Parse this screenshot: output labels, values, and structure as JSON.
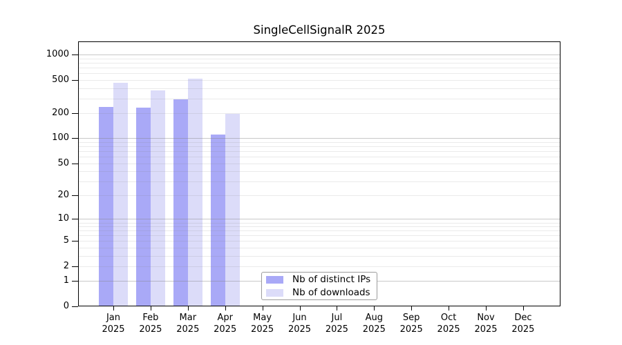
{
  "chart_data": {
    "type": "bar",
    "title": "SingleCellSignalR 2025",
    "categories": [
      "Jan",
      "Feb",
      "Mar",
      "Apr",
      "May",
      "Jun",
      "Jul",
      "Aug",
      "Sep",
      "Oct",
      "Nov",
      "Dec"
    ],
    "x_tick_year": "2025",
    "series": [
      {
        "name": "Nb of distinct IPs",
        "color": "#a9a9f7",
        "values": [
          238,
          235,
          296,
          110,
          null,
          null,
          null,
          null,
          null,
          null,
          null,
          null
        ]
      },
      {
        "name": "Nb of downloads",
        "color": "#dcdcf9",
        "values": [
          465,
          378,
          515,
          197,
          null,
          null,
          null,
          null,
          null,
          null,
          null,
          null
        ]
      }
    ],
    "y_scale": "log1p",
    "y_ticks": [
      0,
      1,
      2,
      5,
      10,
      20,
      50,
      100,
      200,
      500,
      1000
    ],
    "ylim": [
      0,
      1450
    ],
    "grid": true,
    "grid_major_color": "#c8c8c8",
    "grid_minor_color": "#eaeaea",
    "legend_position": "bottom-center-inside"
  }
}
